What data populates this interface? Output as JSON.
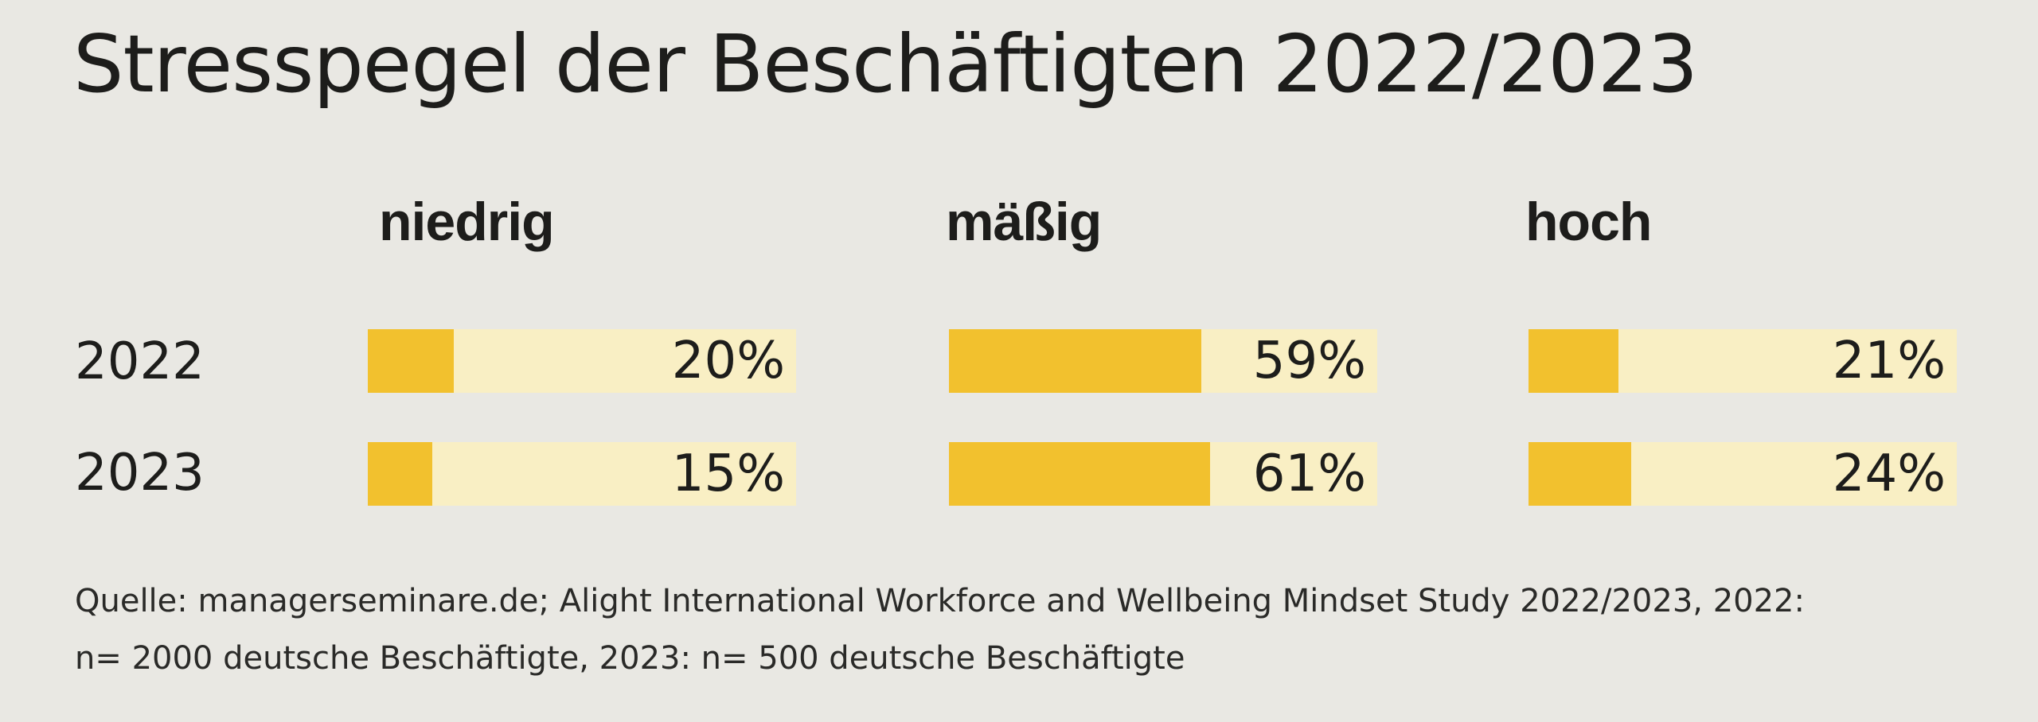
{
  "chart_data": {
    "type": "bar",
    "title": "Stresspegel der Beschäftigten 2022/2023",
    "categories": [
      "niedrig",
      "mäßig",
      "hoch"
    ],
    "series": [
      {
        "name": "2022",
        "values": [
          20,
          59,
          21
        ],
        "labels": [
          "20%",
          "59%",
          "21%"
        ]
      },
      {
        "name": "2023",
        "values": [
          15,
          61,
          24
        ],
        "labels": [
          "15%",
          "61%",
          "24%"
        ]
      }
    ],
    "xlim": [
      0,
      100
    ],
    "unit": "%",
    "colors": {
      "fill": "#f2c12e",
      "track": "#f9efc4",
      "background": "#e9e8e3"
    }
  },
  "source": {
    "line1": "Quelle: managerseminare.de; Alight International Workforce and Wellbeing Mindset Study 2022/2023, 2022:",
    "line2": "n= 2000 deutsche Beschäftigte, 2023: n= 500 deutsche Beschäftigte"
  }
}
